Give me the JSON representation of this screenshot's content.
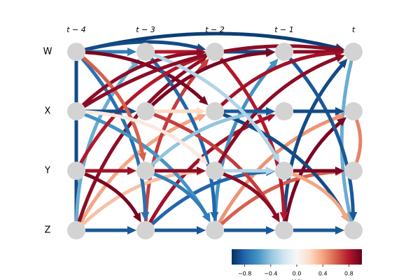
{
  "variables": [
    "W",
    "X",
    "Y",
    "Z"
  ],
  "time_labels": [
    "t − 4",
    "t − 3",
    "t − 2",
    "t − 1",
    "t"
  ],
  "colormap": [
    "#053061",
    "#2166ac",
    "#4393c3",
    "#92c5de",
    "#d1e5f0",
    "#f7f7f7",
    "#fddbc7",
    "#f4a582",
    "#d6604d",
    "#b2182b",
    "#67001f"
  ],
  "clim": [
    -1,
    1
  ],
  "colorbar_ticks": [
    {
      "value": -0.8,
      "label": "−0.8"
    },
    {
      "value": -0.4,
      "label": "−0.4"
    },
    {
      "value": 0,
      "label": "0.0"
    },
    {
      "value": 0.4,
      "label": "0.4"
    },
    {
      "value": 0.8,
      "label": "0.8"
    }
  ],
  "colorbar_label": "MCI",
  "links": [
    {
      "from": [
        3,
        0
      ],
      "to": [
        3,
        1
      ],
      "value": -0.85
    },
    {
      "from": [
        3,
        1
      ],
      "to": [
        3,
        2
      ],
      "value": -0.85
    },
    {
      "from": [
        3,
        2
      ],
      "to": [
        3,
        3
      ],
      "value": -0.85
    },
    {
      "from": [
        3,
        3
      ],
      "to": [
        3,
        4
      ],
      "value": -0.85
    },
    {
      "from": [
        0,
        0
      ],
      "to": [
        0,
        4
      ],
      "value": -0.95
    },
    {
      "from": [
        0,
        0
      ],
      "to": [
        0,
        2
      ],
      "value": -0.9
    },
    {
      "from": [
        0,
        0
      ],
      "to": [
        0,
        1
      ],
      "value": -0.7
    },
    {
      "from": [
        0,
        1
      ],
      "to": [
        0,
        2
      ],
      "value": 0.8
    },
    {
      "from": [
        0,
        2
      ],
      "to": [
        0,
        3
      ],
      "value": -0.9
    },
    {
      "from": [
        0,
        3
      ],
      "to": [
        0,
        4
      ],
      "value": 0.9
    },
    {
      "from": [
        0,
        0
      ],
      "to": [
        3,
        0
      ],
      "value": -0.9
    },
    {
      "from": [
        0,
        4
      ],
      "to": [
        3,
        4
      ],
      "value": -0.5
    },
    {
      "from": [
        1,
        4
      ],
      "to": [
        2,
        4
      ],
      "value": 0.5
    },
    {
      "from": [
        3,
        0
      ],
      "to": [
        0,
        1
      ],
      "value": -0.5
    },
    {
      "from": [
        3,
        0
      ],
      "to": [
        1,
        2
      ],
      "value": 0.4
    },
    {
      "from": [
        3,
        0
      ],
      "to": [
        0,
        2
      ],
      "value": 0.9
    },
    {
      "from": [
        3,
        1
      ],
      "to": [
        0,
        2
      ],
      "value": 0.7
    },
    {
      "from": [
        3,
        1
      ],
      "to": [
        1,
        3
      ],
      "value": 0.85
    },
    {
      "from": [
        3,
        2
      ],
      "to": [
        0,
        3
      ],
      "value": -0.6
    },
    {
      "from": [
        3,
        2
      ],
      "to": [
        1,
        4
      ],
      "value": 0.45
    },
    {
      "from": [
        3,
        3
      ],
      "to": [
        0,
        4
      ],
      "value": -0.9
    },
    {
      "from": [
        3,
        3
      ],
      "to": [
        1,
        4
      ],
      "value": 0.95
    },
    {
      "from": [
        3,
        0
      ],
      "to": [
        2,
        2
      ],
      "value": 0.3
    },
    {
      "from": [
        3,
        1
      ],
      "to": [
        2,
        3
      ],
      "value": -0.8
    },
    {
      "from": [
        3,
        2
      ],
      "to": [
        2,
        4
      ],
      "value": 0.6
    },
    {
      "from": [
        0,
        0
      ],
      "to": [
        3,
        1
      ],
      "value": -0.75
    },
    {
      "from": [
        0,
        0
      ],
      "to": [
        1,
        2
      ],
      "value": 0.95
    },
    {
      "from": [
        0,
        1
      ],
      "to": [
        3,
        2
      ],
      "value": -0.8
    },
    {
      "from": [
        0,
        2
      ],
      "to": [
        3,
        3
      ],
      "value": 0.8
    },
    {
      "from": [
        0,
        3
      ],
      "to": [
        3,
        4
      ],
      "value": -0.85
    },
    {
      "from": [
        1,
        0
      ],
      "to": [
        0,
        2
      ],
      "value": 0.9
    },
    {
      "from": [
        1,
        1
      ],
      "to": [
        0,
        3
      ],
      "value": 0.95
    },
    {
      "from": [
        1,
        2
      ],
      "to": [
        0,
        4
      ],
      "value": 0.85
    },
    {
      "from": [
        1,
        0
      ],
      "to": [
        3,
        2
      ],
      "value": -0.6
    },
    {
      "from": [
        1,
        1
      ],
      "to": [
        3,
        3
      ],
      "value": 0.7
    },
    {
      "from": [
        1,
        2
      ],
      "to": [
        3,
        4
      ],
      "value": -0.9
    },
    {
      "from": [
        2,
        0
      ],
      "to": [
        0,
        2
      ],
      "value": 0.8
    },
    {
      "from": [
        2,
        1
      ],
      "to": [
        1,
        3
      ],
      "value": -0.4
    },
    {
      "from": [
        2,
        2
      ],
      "to": [
        0,
        4
      ],
      "value": 0.9
    },
    {
      "from": [
        2,
        0
      ],
      "to": [
        3,
        1
      ],
      "value": 0.95
    },
    {
      "from": [
        2,
        1
      ],
      "to": [
        3,
        2
      ],
      "value": -0.7
    },
    {
      "from": [
        2,
        2
      ],
      "to": [
        3,
        3
      ],
      "value": 0.9
    },
    {
      "from": [
        2,
        3
      ],
      "to": [
        3,
        4
      ],
      "value": 0.4
    },
    {
      "from": [
        1,
        0
      ],
      "to": [
        1,
        1
      ],
      "value": -0.9
    },
    {
      "from": [
        1,
        1
      ],
      "to": [
        1,
        2
      ],
      "value": 0.2
    },
    {
      "from": [
        1,
        2
      ],
      "to": [
        1,
        3
      ],
      "value": -0.85
    },
    {
      "from": [
        1,
        3
      ],
      "to": [
        1,
        4
      ],
      "value": -0.9
    },
    {
      "from": [
        2,
        0
      ],
      "to": [
        2,
        1
      ],
      "value": 0.85
    },
    {
      "from": [
        2,
        1
      ],
      "to": [
        2,
        2
      ],
      "value": 0.9
    },
    {
      "from": [
        2,
        2
      ],
      "to": [
        2,
        3
      ],
      "value": -0.3
    },
    {
      "from": [
        2,
        3
      ],
      "to": [
        2,
        4
      ],
      "value": 0.95
    },
    {
      "from": [
        0,
        0
      ],
      "to": [
        2,
        1
      ],
      "value": 0.6
    },
    {
      "from": [
        0,
        1
      ],
      "to": [
        2,
        3
      ],
      "value": -0.3
    },
    {
      "from": [
        1,
        0
      ],
      "to": [
        2,
        2
      ],
      "value": 0.1
    },
    {
      "from": [
        1,
        0
      ],
      "to": [
        0,
        4
      ],
      "value": 0.9
    }
  ]
}
